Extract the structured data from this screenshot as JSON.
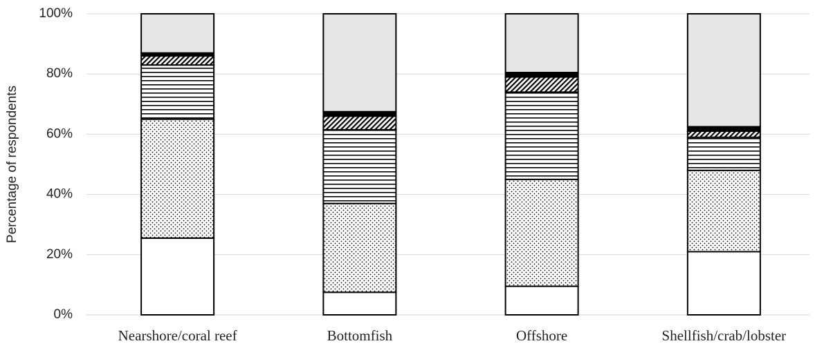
{
  "chart_data": {
    "type": "stacked-bar",
    "y_label": "Percentage of respondents",
    "categories": [
      "Nearshore/coral reef",
      "Bottomfish",
      "Offshore",
      "Shellfish/crab/lobster"
    ],
    "series": [
      {
        "pattern": "solid",
        "color": "#ffffff",
        "values": [
          25.5,
          7.5,
          9.5,
          21
        ]
      },
      {
        "pattern": "dots",
        "color": "#ffffff",
        "values": [
          39.5,
          29.5,
          35.5,
          27
        ]
      },
      {
        "pattern": "horizontal",
        "color": "#ffffff",
        "values": [
          18,
          24.5,
          29,
          11
        ]
      },
      {
        "pattern": "diagonal",
        "color": "#ffffff",
        "values": [
          3,
          4.5,
          5,
          2
        ]
      },
      {
        "pattern": "solid",
        "color": "#000000",
        "values": [
          1,
          1.5,
          1.5,
          1.5
        ]
      },
      {
        "pattern": "solid",
        "color": "#e7e6e6",
        "values": [
          13,
          32.5,
          19.5,
          37.5
        ]
      }
    ],
    "ylim": [
      0,
      100
    ],
    "yticks": [
      {
        "value": 0,
        "label": "0%"
      },
      {
        "value": 20,
        "label": "20%"
      },
      {
        "value": 40,
        "label": "40%"
      },
      {
        "value": 60,
        "label": "60%"
      },
      {
        "value": 80,
        "label": "80%"
      },
      {
        "value": 100,
        "label": "100%"
      }
    ],
    "grid": true
  }
}
